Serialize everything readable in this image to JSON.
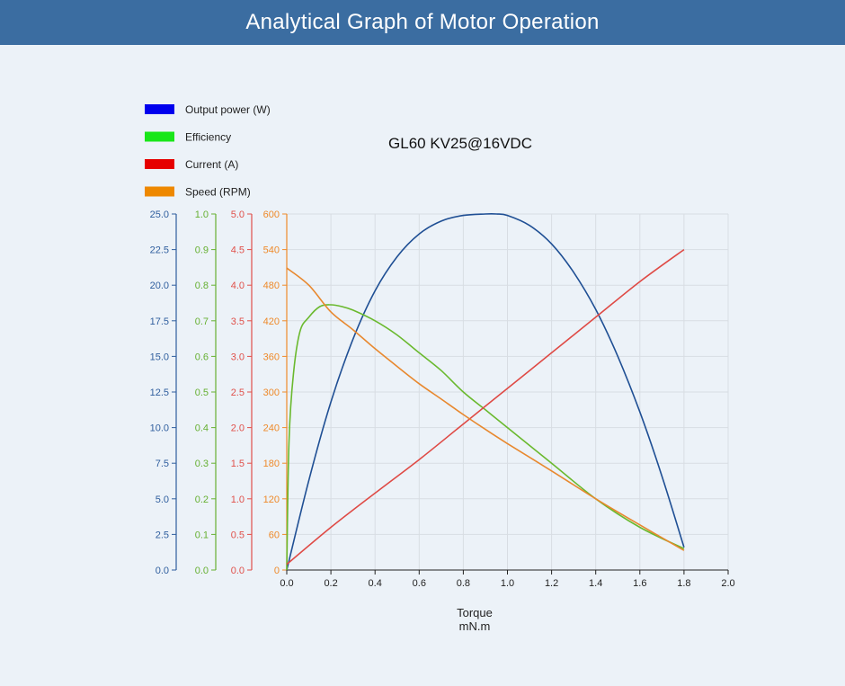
{
  "header": {
    "title": "Analytical Graph of Motor Operation"
  },
  "chart_data": {
    "type": "line",
    "title": "GL60 KV25@16VDC",
    "xlabel": "Torque",
    "xunit": "mN.m",
    "xlim": [
      0,
      2.0
    ],
    "x_ticks": [
      "0.0",
      "0.2",
      "0.4",
      "0.6",
      "0.8",
      "1.0",
      "1.2",
      "1.4",
      "1.6",
      "1.8",
      "2.0"
    ],
    "grid": true,
    "legend_position": "top-left",
    "axes": [
      {
        "key": "power",
        "color": "#2f5e9e",
        "range": [
          0,
          25
        ],
        "ticks": [
          "0.0",
          "2.5",
          "5.0",
          "7.5",
          "10.0",
          "12.5",
          "15.0",
          "17.5",
          "20.0",
          "22.5",
          "25.0"
        ]
      },
      {
        "key": "efficiency",
        "color": "#66b032",
        "range": [
          0,
          1
        ],
        "ticks": [
          "0.0",
          "0.1",
          "0.2",
          "0.3",
          "0.4",
          "0.5",
          "0.6",
          "0.7",
          "0.8",
          "0.9",
          "1.0"
        ]
      },
      {
        "key": "current",
        "color": "#e0504a",
        "range": [
          0,
          5
        ],
        "ticks": [
          "0.0",
          "0.5",
          "1.0",
          "1.5",
          "2.0",
          "2.5",
          "3.0",
          "3.5",
          "4.0",
          "4.5",
          "5.0"
        ]
      },
      {
        "key": "speed",
        "color": "#ee8a2a",
        "range": [
          0,
          600
        ],
        "ticks": [
          "0",
          "60",
          "120",
          "180",
          "240",
          "300",
          "360",
          "420",
          "480",
          "540",
          "600"
        ]
      }
    ],
    "series": [
      {
        "name": "Output power (W)",
        "axis": "power",
        "color": "#1f4f94",
        "legend_color": "#0000ee",
        "points": [
          [
            0,
            0
          ],
          [
            0.1,
            6.3
          ],
          [
            0.2,
            11.8
          ],
          [
            0.3,
            16.2
          ],
          [
            0.4,
            19.6
          ],
          [
            0.5,
            22.0
          ],
          [
            0.6,
            23.6
          ],
          [
            0.7,
            24.5
          ],
          [
            0.8,
            24.9
          ],
          [
            0.9,
            25.0
          ],
          [
            0.95,
            25.0
          ],
          [
            1.0,
            24.9
          ],
          [
            1.1,
            24.2
          ],
          [
            1.2,
            22.9
          ],
          [
            1.3,
            20.9
          ],
          [
            1.4,
            18.3
          ],
          [
            1.5,
            15.0
          ],
          [
            1.6,
            11.1
          ],
          [
            1.7,
            6.6
          ],
          [
            1.8,
            1.6
          ]
        ]
      },
      {
        "name": "Efficiency",
        "axis": "efficiency",
        "color": "#6ab92e",
        "legend_color": "#19e619",
        "points": [
          [
            0,
            0
          ],
          [
            0.01,
            0.36
          ],
          [
            0.03,
            0.55
          ],
          [
            0.06,
            0.67
          ],
          [
            0.1,
            0.71
          ],
          [
            0.15,
            0.74
          ],
          [
            0.2,
            0.745
          ],
          [
            0.25,
            0.74
          ],
          [
            0.3,
            0.73
          ],
          [
            0.4,
            0.7
          ],
          [
            0.5,
            0.66
          ],
          [
            0.6,
            0.61
          ],
          [
            0.7,
            0.56
          ],
          [
            0.8,
            0.5
          ],
          [
            0.9,
            0.45
          ],
          [
            1.0,
            0.4
          ],
          [
            1.2,
            0.3
          ],
          [
            1.4,
            0.2
          ],
          [
            1.6,
            0.12
          ],
          [
            1.8,
            0.06
          ]
        ]
      },
      {
        "name": "Current (A)",
        "axis": "current",
        "color": "#df4a45",
        "legend_color": "#e60000",
        "points": [
          [
            0,
            0.08
          ],
          [
            0.2,
            0.6
          ],
          [
            0.4,
            1.08
          ],
          [
            0.6,
            1.55
          ],
          [
            0.8,
            2.05
          ],
          [
            1.0,
            2.55
          ],
          [
            1.2,
            3.05
          ],
          [
            1.4,
            3.55
          ],
          [
            1.6,
            4.05
          ],
          [
            1.8,
            4.5
          ]
        ]
      },
      {
        "name": "Speed (RPM)",
        "axis": "speed",
        "color": "#e8882e",
        "legend_color": "#ee8800",
        "points": [
          [
            0,
            509
          ],
          [
            0.1,
            480
          ],
          [
            0.2,
            435
          ],
          [
            0.3,
            405
          ],
          [
            0.4,
            373
          ],
          [
            0.5,
            343
          ],
          [
            0.6,
            314
          ],
          [
            0.7,
            288
          ],
          [
            0.8,
            262
          ],
          [
            0.9,
            237
          ],
          [
            1.0,
            213
          ],
          [
            1.2,
            167
          ],
          [
            1.4,
            120
          ],
          [
            1.6,
            76
          ],
          [
            1.8,
            33
          ]
        ]
      }
    ]
  }
}
